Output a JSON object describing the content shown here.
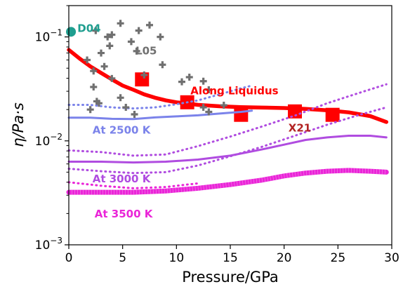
{
  "chart_data": {
    "type": "line",
    "xlabel": "Pressure/GPa",
    "ylabel": "η/Pa·s",
    "xlim": [
      0,
      30
    ],
    "ylim": [
      0.001,
      0.2
    ],
    "y_scale": "log",
    "x_ticks": [
      0,
      5,
      10,
      15,
      20,
      25,
      30
    ],
    "x_tick_labels": [
      "0",
      "5",
      "10",
      "15",
      "20",
      "25",
      "30"
    ],
    "y_ticks": [
      0.001,
      0.01,
      0.1
    ],
    "y_tick_labels": [
      {
        "base": "10",
        "exp": "−3"
      },
      {
        "base": "10",
        "exp": "−2"
      },
      {
        "base": "10",
        "exp": "−1"
      }
    ],
    "grid": false,
    "series": [
      {
        "name": "Along Liquidus",
        "kind": "line",
        "color": "#ff0000",
        "style": "solid",
        "points": [
          [
            0,
            0.075
          ],
          [
            1,
            0.062
          ],
          [
            2,
            0.052
          ],
          [
            3,
            0.045
          ],
          [
            4,
            0.039
          ],
          [
            5,
            0.034
          ],
          [
            6,
            0.031
          ],
          [
            7,
            0.028
          ],
          [
            8,
            0.026
          ],
          [
            9,
            0.0245
          ],
          [
            10,
            0.0235
          ],
          [
            12,
            0.0222
          ],
          [
            14,
            0.0215
          ],
          [
            16,
            0.0211
          ],
          [
            18,
            0.0209
          ],
          [
            20,
            0.0207
          ],
          [
            22,
            0.0203
          ],
          [
            24,
            0.0197
          ],
          [
            26,
            0.0188
          ],
          [
            28,
            0.0173
          ],
          [
            29.5,
            0.0152
          ]
        ]
      },
      {
        "name": "",
        "kind": "points",
        "marker": "square",
        "color": "#ff0000",
        "points": [
          [
            6.8,
            0.039
          ],
          [
            11,
            0.0235
          ],
          [
            16,
            0.0178
          ],
          [
            21,
            0.0192
          ],
          [
            24.5,
            0.0178
          ]
        ]
      },
      {
        "name": "At 2500 K",
        "kind": "line",
        "color": "#7b83ea",
        "style": "solid",
        "points": [
          [
            0,
            0.0167
          ],
          [
            2,
            0.0167
          ],
          [
            4,
            0.0163
          ],
          [
            6,
            0.0162
          ],
          [
            8,
            0.0168
          ],
          [
            10,
            0.0172
          ],
          [
            12,
            0.0176
          ],
          [
            14,
            0.0183
          ],
          [
            16,
            0.019
          ],
          [
            17,
            0.0195
          ]
        ]
      },
      {
        "name": "",
        "kind": "line",
        "color": "#7b83ea",
        "style": "dotted",
        "points": [
          [
            0,
            0.0222
          ],
          [
            2,
            0.0222
          ],
          [
            4,
            0.021
          ],
          [
            6,
            0.0205
          ],
          [
            8,
            0.021
          ],
          [
            10,
            0.0225
          ],
          [
            12,
            0.0245
          ],
          [
            14,
            0.028
          ],
          [
            16,
            0.032
          ],
          [
            17,
            0.034
          ]
        ]
      },
      {
        "name": "At 3000 K",
        "kind": "line",
        "color": "#b04ce0",
        "style": "solid",
        "points": [
          [
            0,
            0.0063
          ],
          [
            3,
            0.0063
          ],
          [
            6,
            0.0062
          ],
          [
            9,
            0.0063
          ],
          [
            12,
            0.0066
          ],
          [
            15,
            0.0072
          ],
          [
            18,
            0.0083
          ],
          [
            20,
            0.0092
          ],
          [
            22,
            0.0102
          ],
          [
            24,
            0.0108
          ],
          [
            26,
            0.0112
          ],
          [
            28,
            0.0112
          ],
          [
            29.5,
            0.0108
          ]
        ]
      },
      {
        "name": "",
        "kind": "line",
        "color": "#b04ce0",
        "style": "dotted",
        "points": [
          [
            0,
            0.0081
          ],
          [
            3,
            0.0078
          ],
          [
            6,
            0.0072
          ],
          [
            9,
            0.0074
          ],
          [
            12,
            0.0089
          ],
          [
            15,
            0.011
          ],
          [
            18,
            0.0138
          ],
          [
            21,
            0.0175
          ],
          [
            24,
            0.023
          ],
          [
            27,
            0.029
          ],
          [
            29.5,
            0.035
          ]
        ]
      },
      {
        "name": "",
        "kind": "line",
        "color": "#b04ce0",
        "style": "dotted",
        "points": [
          [
            0,
            0.0054
          ],
          [
            3,
            0.0051
          ],
          [
            6,
            0.0049
          ],
          [
            9,
            0.005
          ],
          [
            12,
            0.0058
          ],
          [
            15,
            0.0071
          ],
          [
            18,
            0.0088
          ],
          [
            21,
            0.0112
          ],
          [
            24,
            0.0143
          ],
          [
            27,
            0.0178
          ],
          [
            29.5,
            0.021
          ]
        ]
      },
      {
        "name": "At 3500 K",
        "kind": "line",
        "color": "#ea25d8",
        "style": "thick",
        "points": [
          [
            0,
            0.0032
          ],
          [
            3,
            0.0032
          ],
          [
            6,
            0.0032
          ],
          [
            9,
            0.0033
          ],
          [
            12,
            0.0035
          ],
          [
            15,
            0.0038
          ],
          [
            18,
            0.0042
          ],
          [
            20,
            0.0046
          ],
          [
            22,
            0.0049
          ],
          [
            24,
            0.0051
          ],
          [
            26,
            0.0052
          ],
          [
            28,
            0.0051
          ],
          [
            29.5,
            0.005
          ]
        ]
      },
      {
        "name": "",
        "kind": "line",
        "color": "#ea25d8",
        "style": "dotted",
        "points": [
          [
            0,
            0.004
          ],
          [
            3,
            0.0037
          ],
          [
            6,
            0.0035
          ],
          [
            9,
            0.0036
          ],
          [
            12,
            0.0039
          ]
        ]
      },
      {
        "name": "D04",
        "kind": "points",
        "marker": "circle",
        "color": "#1f9e8f",
        "points": [
          [
            0.2,
            0.112
          ]
        ]
      },
      {
        "name": "L05",
        "kind": "points",
        "marker": "plus",
        "color": "#707070",
        "points": [
          [
            2,
            0.02
          ],
          [
            2.3,
            0.033
          ],
          [
            2.3,
            0.047
          ],
          [
            2.6,
            0.024
          ],
          [
            2.8,
            0.023
          ],
          [
            3,
            0.07
          ],
          [
            3.3,
            0.052
          ],
          [
            4,
            0.0398
          ],
          [
            4.8,
            0.026
          ],
          [
            5.3,
            0.021
          ],
          [
            6.1,
            0.018
          ],
          [
            6.3,
            0.073
          ],
          [
            7,
            0.043
          ],
          [
            8.7,
            0.054
          ],
          [
            10.5,
            0.037
          ],
          [
            11.2,
            0.041
          ],
          [
            12.5,
            0.0375
          ],
          [
            13,
            0.031
          ],
          [
            12.5,
            0.021
          ],
          [
            14.4,
            0.022
          ],
          [
            13,
            0.019
          ],
          [
            1.7,
            0.06
          ],
          [
            3.8,
            0.082
          ],
          [
            5.8,
            0.09
          ],
          [
            7.5,
            0.13
          ],
          [
            8.5,
            0.1
          ],
          [
            6.5,
            0.115
          ],
          [
            4,
            0.105
          ],
          [
            2.5,
            0.115
          ],
          [
            3.6,
            0.1
          ],
          [
            4.8,
            0.135
          ]
        ]
      }
    ],
    "annotations": [
      {
        "text": "D04",
        "x": 0.8,
        "y": 0.112,
        "color": "#1f9e8f"
      },
      {
        "text": "L05",
        "x": 6.2,
        "y": 0.068,
        "color": "#707070"
      },
      {
        "text": "Along Liquidus",
        "x": 11.3,
        "y": 0.028,
        "color": "#ff0000"
      },
      {
        "text": "X21",
        "x": 20.4,
        "y": 0.0123,
        "color": "#b22222"
      },
      {
        "text": "At 2500 K",
        "x": 2.2,
        "y": 0.0117,
        "color": "#7b83ea"
      },
      {
        "text": "At 3000 K",
        "x": 2.2,
        "y": 0.004,
        "color": "#b04ce0"
      },
      {
        "text": "At 3500 K",
        "x": 2.4,
        "y": 0.00183,
        "color": "#ea25d8"
      }
    ]
  }
}
